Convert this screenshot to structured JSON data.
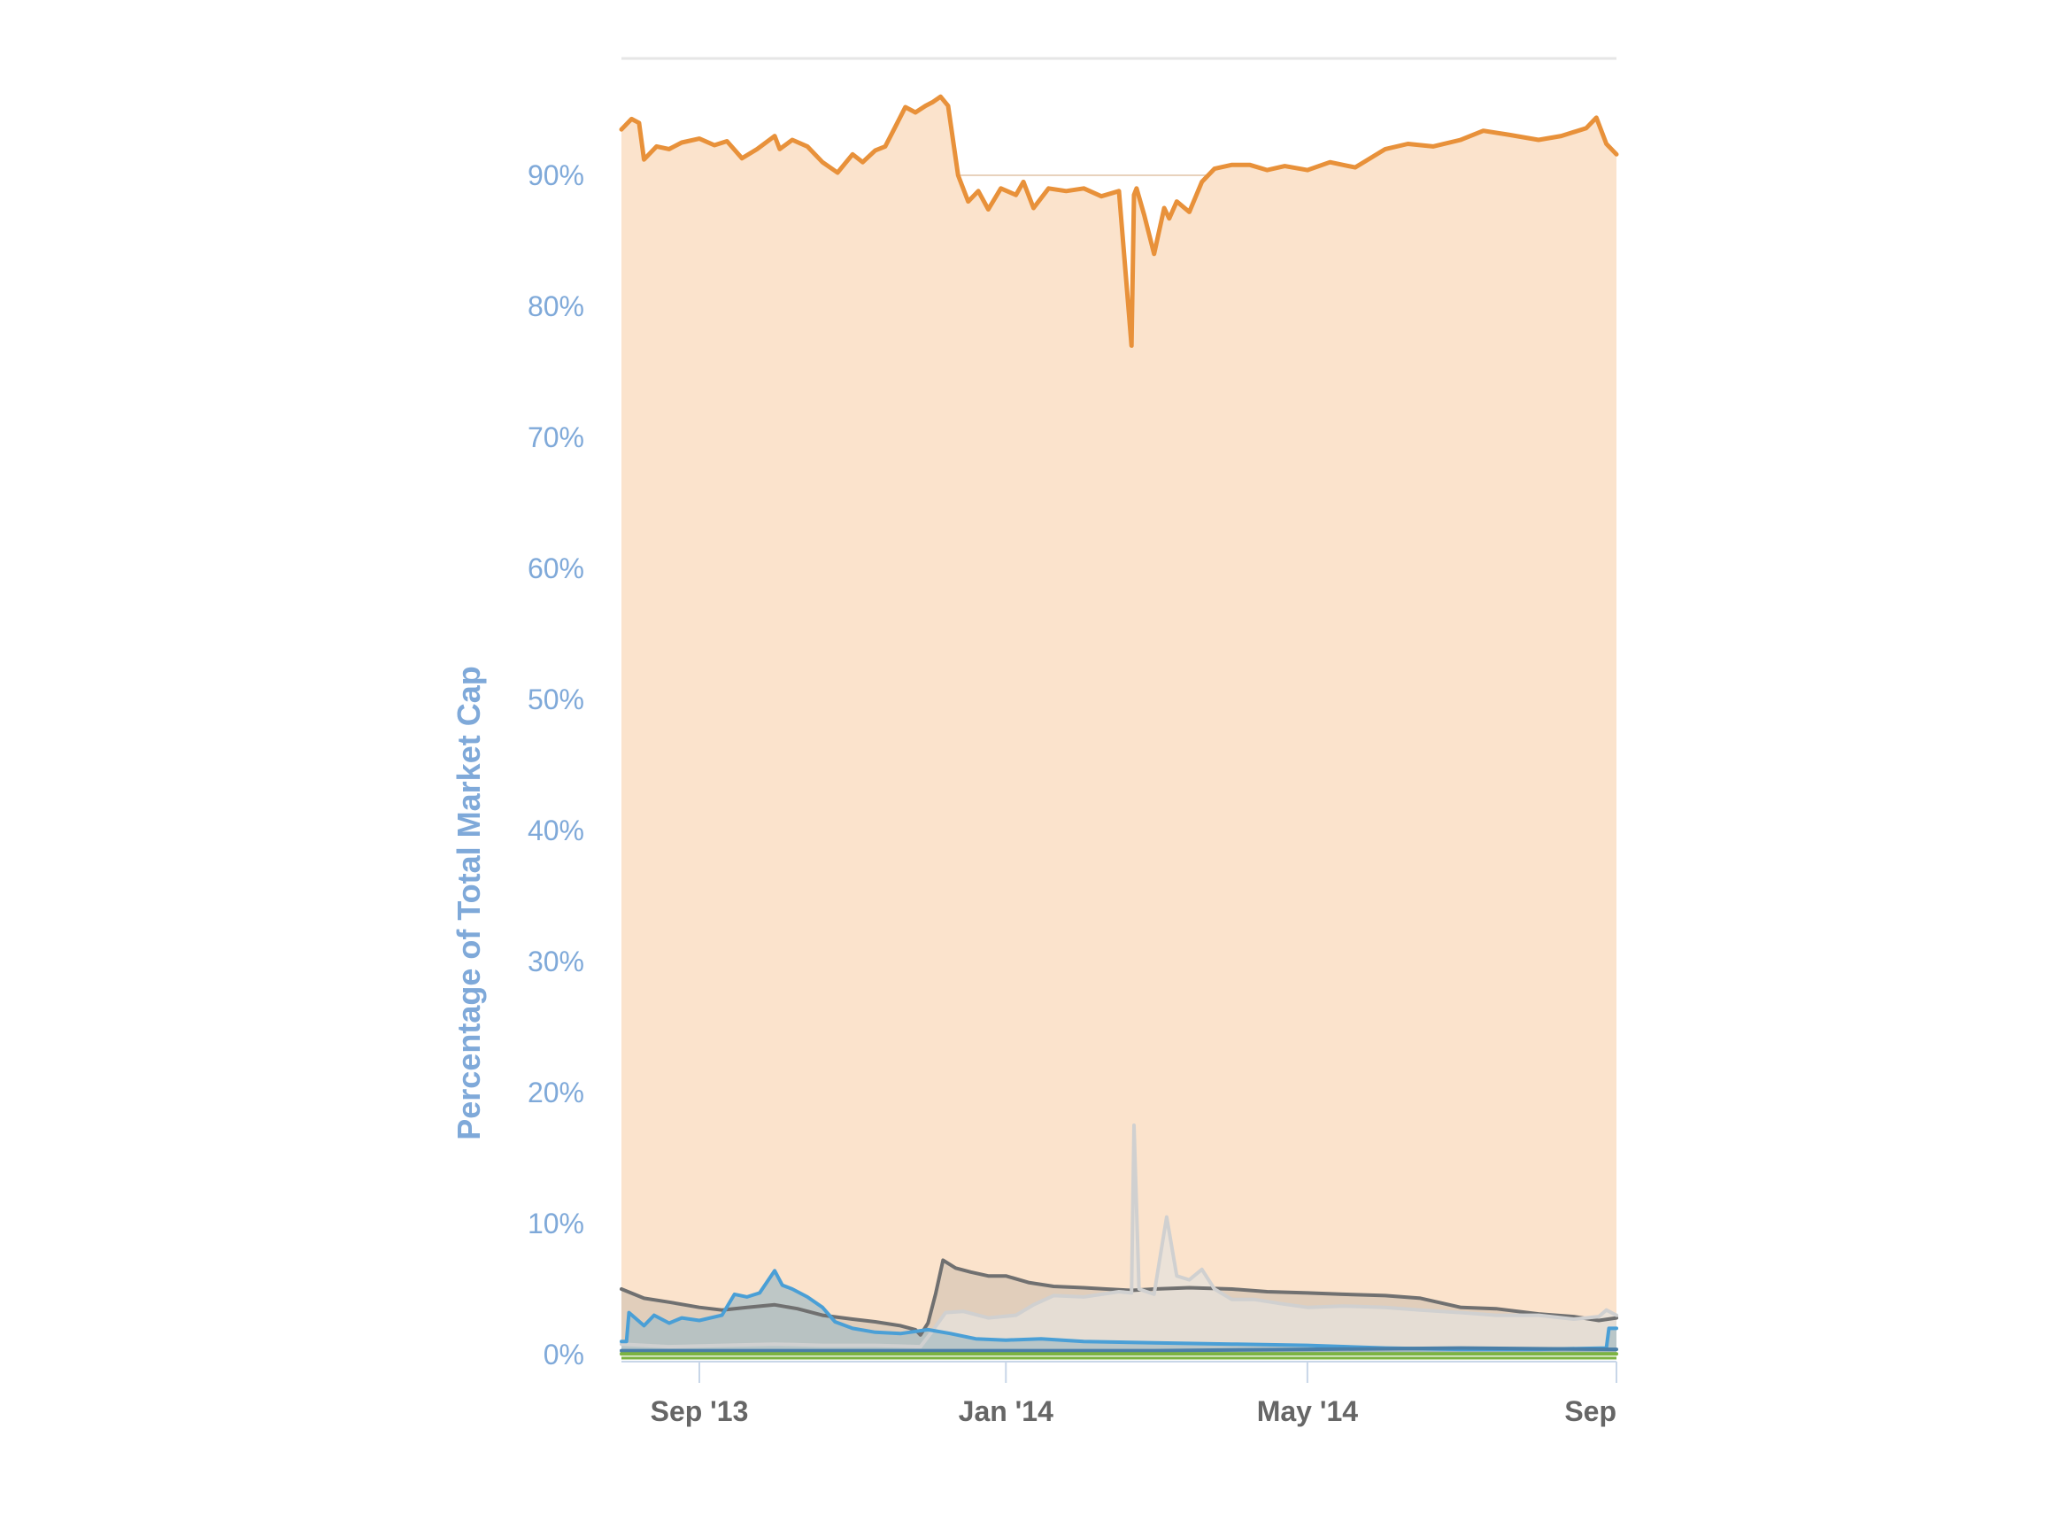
{
  "chart_data": {
    "type": "area",
    "ylabel": "Percentage of Total Market Cap",
    "xlabel": "",
    "ylim": [
      0,
      100
    ],
    "xlim": [
      "2013-08-01",
      "2014-09-01"
    ],
    "yticks": [
      {
        "value": 0,
        "label": "0%"
      },
      {
        "value": 10,
        "label": "10%"
      },
      {
        "value": 20,
        "label": "20%"
      },
      {
        "value": 30,
        "label": "30%"
      },
      {
        "value": 40,
        "label": "40%"
      },
      {
        "value": 50,
        "label": "50%"
      },
      {
        "value": 60,
        "label": "60%"
      },
      {
        "value": 70,
        "label": "70%"
      },
      {
        "value": 80,
        "label": "80%"
      },
      {
        "value": 90,
        "label": "90%"
      }
    ],
    "xticks": [
      {
        "date": "2013-09-01",
        "label": "Sep '13"
      },
      {
        "date": "2014-01-01",
        "label": "Jan '14"
      },
      {
        "date": "2014-05-01",
        "label": "May '14"
      },
      {
        "date": "2014-09-01",
        "label": "Sep"
      }
    ],
    "grid": true,
    "legend": "none",
    "series": [
      {
        "color": "#e8913a",
        "fill": "#fbe3cc",
        "x": [
          "2013-08-01",
          "2013-08-05",
          "2013-08-08",
          "2013-08-10",
          "2013-08-15",
          "2013-08-20",
          "2013-08-25",
          "2013-09-01",
          "2013-09-07",
          "2013-09-12",
          "2013-09-18",
          "2013-09-24",
          "2013-10-01",
          "2013-10-03",
          "2013-10-08",
          "2013-10-14",
          "2013-10-20",
          "2013-10-26",
          "2013-11-01",
          "2013-11-05",
          "2013-11-10",
          "2013-11-14",
          "2013-11-18",
          "2013-11-22",
          "2013-11-26",
          "2013-11-30",
          "2013-12-03",
          "2013-12-06",
          "2013-12-09",
          "2013-12-13",
          "2013-12-17",
          "2013-12-21",
          "2013-12-25",
          "2013-12-30",
          "2014-01-05",
          "2014-01-08",
          "2014-01-12",
          "2014-01-18",
          "2014-01-25",
          "2014-02-01",
          "2014-02-08",
          "2014-02-15",
          "2014-02-20",
          "2014-02-21",
          "2014-02-22",
          "2014-02-25",
          "2014-03-01",
          "2014-03-05",
          "2014-03-07",
          "2014-03-10",
          "2014-03-15",
          "2014-03-20",
          "2014-03-25",
          "2014-04-01",
          "2014-04-08",
          "2014-04-15",
          "2014-04-22",
          "2014-05-01",
          "2014-05-10",
          "2014-05-20",
          "2014-06-01",
          "2014-06-10",
          "2014-06-20",
          "2014-07-01",
          "2014-07-10",
          "2014-07-20",
          "2014-08-01",
          "2014-08-10",
          "2014-08-20",
          "2014-08-24",
          "2014-08-28",
          "2014-09-01"
        ],
        "values": [
          93.5,
          94.3,
          94.0,
          91.2,
          92.2,
          92.0,
          92.5,
          92.8,
          92.3,
          92.6,
          91.3,
          92.0,
          93.0,
          92.0,
          92.7,
          92.2,
          91.0,
          90.2,
          91.6,
          91.0,
          91.9,
          92.2,
          93.7,
          95.2,
          94.8,
          95.3,
          95.6,
          96.0,
          95.3,
          90.0,
          88.0,
          88.8,
          87.4,
          89.0,
          88.5,
          89.5,
          87.5,
          89.0,
          88.8,
          89.0,
          88.4,
          88.8,
          77.0,
          88.5,
          89.0,
          87.0,
          84.0,
          87.5,
          86.7,
          88.0,
          87.2,
          89.5,
          90.5,
          90.8,
          90.8,
          90.4,
          90.7,
          90.4,
          91.0,
          90.6,
          92.0,
          92.4,
          92.2,
          92.7,
          93.4,
          93.1,
          92.7,
          93.0,
          93.6,
          94.4,
          92.4,
          91.6
        ]
      },
      {
        "color": "#707070",
        "fill": "#d8c7b5",
        "x": [
          "2013-08-01",
          "2013-08-10",
          "2013-08-20",
          "2013-09-01",
          "2013-09-10",
          "2013-09-20",
          "2013-10-01",
          "2013-10-10",
          "2013-10-20",
          "2013-11-01",
          "2013-11-10",
          "2013-11-20",
          "2013-11-26",
          "2013-11-28",
          "2013-12-01",
          "2013-12-04",
          "2013-12-07",
          "2013-12-12",
          "2013-12-18",
          "2013-12-25",
          "2014-01-01",
          "2014-01-10",
          "2014-01-20",
          "2014-02-01",
          "2014-02-10",
          "2014-02-20",
          "2014-03-01",
          "2014-03-15",
          "2014-04-01",
          "2014-04-15",
          "2014-05-01",
          "2014-05-15",
          "2014-06-01",
          "2014-06-15",
          "2014-07-01",
          "2014-07-15",
          "2014-08-01",
          "2014-08-15",
          "2014-08-25",
          "2014-09-01"
        ],
        "values": [
          5.0,
          4.3,
          4.0,
          3.6,
          3.4,
          3.6,
          3.8,
          3.5,
          3.0,
          2.7,
          2.5,
          2.2,
          1.9,
          1.5,
          2.4,
          4.6,
          7.2,
          6.6,
          6.3,
          6.0,
          6.0,
          5.5,
          5.2,
          5.1,
          5.0,
          4.9,
          5.0,
          5.1,
          5.0,
          4.8,
          4.7,
          4.6,
          4.5,
          4.3,
          3.6,
          3.5,
          3.1,
          2.9,
          2.6,
          2.8
        ]
      },
      {
        "color": "#d0d0d0",
        "fill": "#e6e2dc",
        "x": [
          "2013-08-01",
          "2013-08-20",
          "2013-09-10",
          "2013-10-01",
          "2013-10-20",
          "2013-11-10",
          "2013-11-28",
          "2013-12-02",
          "2013-12-08",
          "2013-12-15",
          "2013-12-25",
          "2014-01-05",
          "2014-01-12",
          "2014-01-20",
          "2014-02-01",
          "2014-02-15",
          "2014-02-20",
          "2014-02-21",
          "2014-02-23",
          "2014-02-26",
          "2014-03-01",
          "2014-03-03",
          "2014-03-06",
          "2014-03-10",
          "2014-03-15",
          "2014-03-20",
          "2014-03-25",
          "2014-04-01",
          "2014-04-10",
          "2014-04-20",
          "2014-05-01",
          "2014-05-15",
          "2014-06-01",
          "2014-06-15",
          "2014-07-01",
          "2014-07-15",
          "2014-08-01",
          "2014-08-15",
          "2014-08-25",
          "2014-08-28",
          "2014-09-01"
        ],
        "values": [
          0.8,
          0.6,
          0.7,
          0.8,
          0.7,
          0.7,
          0.6,
          1.6,
          3.2,
          3.3,
          2.8,
          3.0,
          3.8,
          4.5,
          4.4,
          4.8,
          4.7,
          17.5,
          5.0,
          4.8,
          4.6,
          7.0,
          10.5,
          6.0,
          5.7,
          6.5,
          5.0,
          4.2,
          4.2,
          3.9,
          3.6,
          3.7,
          3.6,
          3.4,
          3.2,
          3.0,
          3.0,
          2.7,
          2.9,
          3.4,
          3.0
        ]
      },
      {
        "color": "#4a9fd6",
        "fill": "#a9bdc4",
        "x": [
          "2013-08-01",
          "2013-08-03",
          "2013-08-04",
          "2013-08-10",
          "2013-08-14",
          "2013-08-20",
          "2013-08-25",
          "2013-09-01",
          "2013-09-10",
          "2013-09-15",
          "2013-09-20",
          "2013-09-25",
          "2013-10-01",
          "2013-10-04",
          "2013-10-08",
          "2013-10-14",
          "2013-10-20",
          "2013-10-25",
          "2013-11-01",
          "2013-11-10",
          "2013-11-20",
          "2013-12-01",
          "2013-12-10",
          "2013-12-20",
          "2014-01-01",
          "2014-01-15",
          "2014-02-01",
          "2014-03-01",
          "2014-04-01",
          "2014-05-01",
          "2014-06-01",
          "2014-07-01",
          "2014-08-01",
          "2014-08-28",
          "2014-08-29",
          "2014-09-01"
        ],
        "values": [
          1.0,
          1.0,
          3.2,
          2.2,
          3.0,
          2.4,
          2.8,
          2.6,
          3.0,
          4.6,
          4.4,
          4.7,
          6.4,
          5.3,
          5.0,
          4.4,
          3.6,
          2.5,
          2.0,
          1.7,
          1.6,
          1.9,
          1.6,
          1.2,
          1.1,
          1.2,
          1.0,
          0.9,
          0.8,
          0.7,
          0.5,
          0.4,
          0.4,
          0.5,
          2.0,
          2.0
        ]
      },
      {
        "color": "#4a7fa8",
        "fill": "#9ab0bb",
        "x": [
          "2013-08-01",
          "2013-11-01",
          "2014-01-01",
          "2014-03-01",
          "2014-05-01",
          "2014-07-01",
          "2014-09-01"
        ],
        "values": [
          0.3,
          0.3,
          0.3,
          0.3,
          0.4,
          0.5,
          0.4
        ]
      },
      {
        "color": "#7cb342",
        "fill": "none",
        "x": [
          "2013-08-01",
          "2014-09-01"
        ],
        "values": [
          0.05,
          0.05
        ]
      }
    ]
  }
}
